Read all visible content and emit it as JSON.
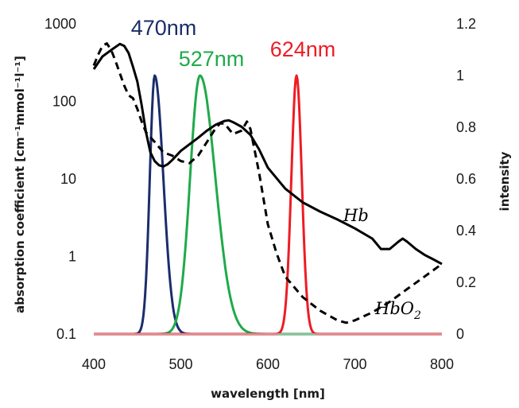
{
  "chart_data": {
    "type": "line",
    "xlabel": "wavelength [nm]",
    "ylabel_left": "absorption  coefficient [cm⁻¹mmol⁻¹l⁻¹]",
    "ylabel_right": "intensity",
    "x_ticks": [
      "400",
      "500",
      "600",
      "700",
      "800"
    ],
    "y_left_ticks": [
      "0.1",
      "1",
      "10",
      "100",
      "1000"
    ],
    "y_right_ticks": [
      "0",
      "0.2",
      "0.4",
      "0.6",
      "0.8",
      "1",
      "1.2"
    ],
    "xlim": [
      400,
      800
    ],
    "ylim_left": [
      0.1,
      1000
    ],
    "ylim_left_scale": "log",
    "ylim_right": [
      0,
      1.2
    ],
    "absorption_series": [
      {
        "name": "Hb",
        "label": "Hb",
        "style": "solid",
        "color": "#000000",
        "x": [
          400,
          410,
          420,
          430,
          435,
          440,
          445,
          450,
          455,
          460,
          465,
          470,
          475,
          480,
          485,
          490,
          500,
          510,
          520,
          530,
          540,
          550,
          555,
          560,
          570,
          580,
          590,
          600,
          620,
          640,
          660,
          680,
          700,
          720,
          730,
          740,
          750,
          755,
          760,
          770,
          780,
          790,
          800
        ],
        "y": [
          260,
          380,
          460,
          550,
          520,
          420,
          280,
          180,
          90,
          40,
          22,
          17,
          15,
          14.5,
          15.5,
          17.5,
          23,
          28,
          34,
          42,
          50,
          56,
          57,
          54,
          47,
          37,
          24,
          14,
          7.5,
          5,
          3.8,
          3.0,
          2.3,
          1.7,
          1.25,
          1.25,
          1.55,
          1.7,
          1.55,
          1.25,
          1.05,
          0.92,
          0.8
        ]
      },
      {
        "name": "HbO2",
        "label": "HbO",
        "label_sub": "2",
        "style": "dashed",
        "color": "#000000",
        "x": [
          400,
          405,
          410,
          415,
          420,
          425,
          430,
          435,
          440,
          445,
          450,
          455,
          460,
          470,
          480,
          490,
          500,
          510,
          520,
          530,
          540,
          545,
          550,
          560,
          570,
          576,
          580,
          590,
          600,
          610,
          620,
          640,
          660,
          680,
          690,
          700,
          720,
          740,
          760,
          780,
          800
        ],
        "y": [
          290,
          400,
          520,
          560,
          460,
          330,
          230,
          160,
          120,
          110,
          80,
          55,
          40,
          30,
          22,
          20,
          17,
          16,
          20,
          30,
          45,
          52,
          52,
          38,
          42,
          55,
          44,
          12,
          2.6,
          1.1,
          0.55,
          0.3,
          0.2,
          0.15,
          0.14,
          0.15,
          0.19,
          0.26,
          0.38,
          0.55,
          0.8
        ]
      }
    ],
    "intensity_series": [
      {
        "name": "470nm",
        "label": "470nm",
        "color": "#1b2d6b",
        "peak_x": 470,
        "peak_y": 1.0
      },
      {
        "name": "527nm",
        "label": "527nm",
        "color": "#1faa4a",
        "peak_x": 522,
        "peak_y": 1.0
      },
      {
        "name": "624nm",
        "label": "624nm",
        "color": "#ee1c24",
        "peak_x": 633,
        "peak_y": 1.0
      }
    ],
    "grid": false,
    "legend": "none"
  }
}
